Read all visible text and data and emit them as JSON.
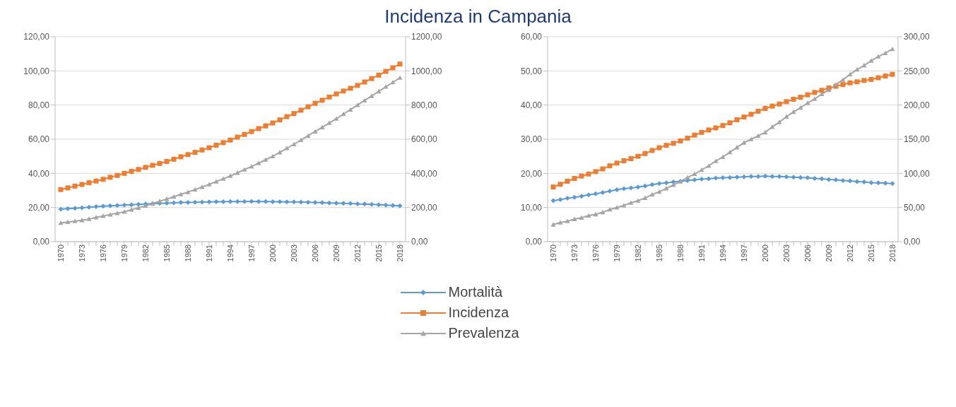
{
  "chart_data": [
    {
      "type": "line",
      "title": "Incidenza in Campania",
      "categories": [
        "1970",
        null,
        null,
        "1973",
        null,
        null,
        "1976",
        null,
        null,
        "1979",
        null,
        null,
        "1982",
        null,
        null,
        "1985",
        null,
        null,
        "1988",
        null,
        null,
        "1991",
        null,
        null,
        "1994",
        null,
        null,
        "1997",
        null,
        null,
        "2000",
        null,
        null,
        "2003",
        null,
        null,
        "2006",
        null,
        null,
        "2009",
        null,
        null,
        "2012",
        null,
        null,
        "2015",
        null,
        null,
        "2018"
      ],
      "series": [
        {
          "name": "Mortalità",
          "color": "#5b9bd5",
          "marker": "diamond",
          "values": [
            19,
            19.3,
            19.6,
            19.9,
            20.2,
            20.5,
            20.8,
            21,
            21.2,
            21.4,
            21.6,
            21.8,
            22,
            22.2,
            22.4,
            22.6,
            22.8,
            23,
            23,
            23.1,
            23.2,
            23.3,
            23.4,
            23.4,
            23.5,
            23.5,
            23.5,
            23.6,
            23.5,
            23.5,
            23.4,
            23.4,
            23.3,
            23.3,
            23.2,
            23.1,
            23,
            22.9,
            22.7,
            22.6,
            22.4,
            22.3,
            22.1,
            22,
            21.8,
            21.6,
            21.4,
            21.2,
            21
          ]
        },
        {
          "name": "Incidenza",
          "color": "#ed7d31",
          "marker": "square",
          "values": [
            30.5,
            31.5,
            32.5,
            33.5,
            34.5,
            35.5,
            36.5,
            37.7,
            38.8,
            40,
            41.2,
            42.3,
            43.5,
            44.7,
            45.8,
            47,
            48.3,
            49.7,
            51,
            52.3,
            53.7,
            55,
            56.5,
            58,
            59.5,
            61.2,
            62.8,
            64.5,
            66.2,
            67.8,
            69.5,
            71.3,
            73.2,
            75,
            77,
            79,
            81,
            82.8,
            84.7,
            86.5,
            88.2,
            89.8,
            91.5,
            93.5,
            95.5,
            97.5,
            99.7,
            101.8,
            104
          ]
        },
        {
          "name": "Prevalenza",
          "color": "#a5a5a5",
          "marker": "triangle",
          "axis": "y2",
          "values": [
            110,
            115,
            120,
            125,
            133,
            142,
            150,
            158,
            167,
            175,
            187,
            198,
            210,
            223,
            237,
            250,
            263,
            277,
            290,
            305,
            320,
            335,
            352,
            368,
            385,
            403,
            422,
            440,
            460,
            480,
            500,
            523,
            547,
            570,
            595,
            620,
            645,
            670,
            695,
            720,
            747,
            773,
            800,
            827,
            853,
            880,
            907,
            933,
            960
          ]
        }
      ],
      "ylim": [
        0,
        120
      ],
      "yticks": [
        {
          "value": 0,
          "label": "0,00"
        },
        {
          "value": 20,
          "label": "20,00"
        },
        {
          "value": 40,
          "label": "40,00"
        },
        {
          "value": 60,
          "label": "60,00"
        },
        {
          "value": 80,
          "label": "80,00"
        },
        {
          "value": 100,
          "label": "100,00"
        },
        {
          "value": 120,
          "label": "120,00"
        }
      ],
      "y2lim": [
        0,
        1200
      ],
      "y2ticks": [
        {
          "value": 0,
          "label": "0,00"
        },
        {
          "value": 200,
          "label": "200,00"
        },
        {
          "value": 400,
          "label": "400,00"
        },
        {
          "value": 600,
          "label": "600,00"
        },
        {
          "value": 800,
          "label": "800,00"
        },
        {
          "value": 1000,
          "label": "1000,00"
        },
        {
          "value": 1200,
          "label": "1200,00"
        }
      ],
      "grid": "y",
      "legend": "bottom",
      "line_style": "solid"
    },
    {
      "type": "line",
      "categories": [
        "1970",
        null,
        null,
        "1973",
        null,
        null,
        "1976",
        null,
        null,
        "1979",
        null,
        null,
        "1982",
        null,
        null,
        "1985",
        null,
        null,
        "1988",
        null,
        null,
        "1991",
        null,
        null,
        "1994",
        null,
        null,
        "1997",
        null,
        null,
        "2000",
        null,
        null,
        "2003",
        null,
        null,
        "2006",
        null,
        null,
        "2009",
        null,
        null,
        "2012",
        null,
        null,
        "2015",
        null,
        null,
        "2018"
      ],
      "series": [
        {
          "color": "#5b9bd5",
          "marker": "diamond",
          "values": [
            12,
            12.3,
            12.7,
            13,
            13.3,
            13.7,
            14,
            14.4,
            14.8,
            15.2,
            15.5,
            15.7,
            16,
            16.3,
            16.7,
            17,
            17.2,
            17.5,
            17.7,
            17.9,
            18.1,
            18.3,
            18.4,
            18.6,
            18.7,
            18.8,
            18.9,
            19,
            19.1,
            19.1,
            19.2,
            19.1,
            19.1,
            19,
            18.9,
            18.8,
            18.7,
            18.5,
            18.4,
            18.2,
            18.1,
            17.9,
            17.8,
            17.6,
            17.5,
            17.3,
            17.2,
            17.1,
            17
          ]
        },
        {
          "color": "#ed7d31",
          "marker": "square",
          "values": [
            16,
            16.8,
            17.7,
            18.5,
            19.2,
            19.8,
            20.5,
            21.3,
            22.2,
            23,
            23.7,
            24.3,
            25,
            25.8,
            26.7,
            27.5,
            28.2,
            28.8,
            29.5,
            30.3,
            31.2,
            32,
            32.7,
            33.3,
            34,
            34.8,
            35.7,
            36.5,
            37.3,
            38.2,
            39,
            39.7,
            40.3,
            41,
            41.7,
            42.3,
            43,
            43.7,
            44.3,
            45,
            45.5,
            46,
            46.5,
            46.8,
            47.2,
            47.5,
            48,
            48.5,
            49
          ]
        },
        {
          "color": "#a5a5a5",
          "marker": "triangle",
          "axis": "y2",
          "values": [
            25,
            28,
            30,
            33,
            35,
            38,
            40,
            43,
            47,
            50,
            53,
            57,
            60,
            64,
            69,
            73,
            78,
            83,
            88,
            94,
            99,
            105,
            111,
            118,
            124,
            131,
            138,
            145,
            150,
            155,
            160,
            168,
            175,
            183,
            190,
            196,
            203,
            209,
            216,
            222,
            230,
            237,
            245,
            252,
            258,
            265,
            271,
            276,
            282
          ]
        }
      ],
      "ylim": [
        0,
        60
      ],
      "yticks": [
        {
          "value": 0,
          "label": "0,00"
        },
        {
          "value": 10,
          "label": "10,00"
        },
        {
          "value": 20,
          "label": "20,00"
        },
        {
          "value": 30,
          "label": "30,00"
        },
        {
          "value": 40,
          "label": "40,00"
        },
        {
          "value": 50,
          "label": "50,00"
        },
        {
          "value": 60,
          "label": "60,00"
        }
      ],
      "y2lim": [
        0,
        300
      ],
      "y2ticks": [
        {
          "value": 0,
          "label": "0,00"
        },
        {
          "value": 50,
          "label": "50,00"
        },
        {
          "value": 100,
          "label": "100,00"
        },
        {
          "value": 150,
          "label": "150,00"
        },
        {
          "value": 200,
          "label": "200,00"
        },
        {
          "value": 250,
          "label": "250,00"
        },
        {
          "value": 300,
          "label": "300,00"
        }
      ],
      "grid": "y",
      "line_style": "solid"
    }
  ]
}
